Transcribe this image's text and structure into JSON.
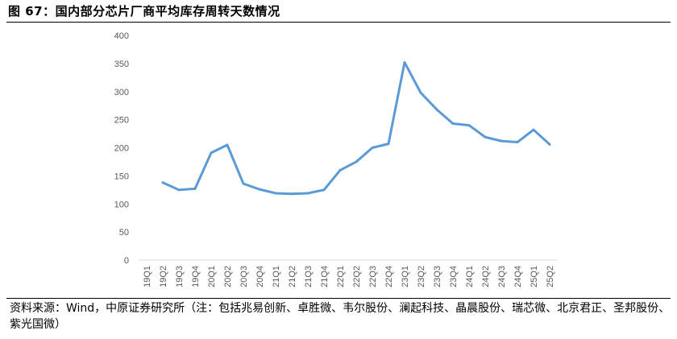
{
  "figure": {
    "title": "图 67：国内部分芯片厂商平均库存周转天数情况",
    "source": "资料来源：Wind，中原证券研究所（注：包括兆易创新、卓胜微、韦尔股份、澜起科技、晶晨股份、瑞芯微、北京君正、圣邦股份、紫光国微）"
  },
  "chart_data": {
    "type": "line",
    "title": "",
    "xlabel": "",
    "ylabel": "",
    "ylim": [
      0,
      400
    ],
    "yticks": [
      "0",
      "50",
      "100",
      "150",
      "200",
      "250",
      "300",
      "350",
      "400"
    ],
    "grid": false,
    "legend": "none",
    "categories": [
      "19Q1",
      "19Q2",
      "19Q3",
      "19Q4",
      "20Q1",
      "20Q2",
      "20Q3",
      "20Q4",
      "21Q1",
      "21Q2",
      "21Q3",
      "21Q4",
      "22Q1",
      "22Q2",
      "22Q3",
      "22Q4",
      "23Q1",
      "23Q2",
      "23Q3",
      "23Q4",
      "24Q1",
      "24Q2",
      "24Q3",
      "24Q4",
      "25Q1",
      "25Q2"
    ],
    "series": [
      {
        "color": "#5b9bd5",
        "values": [
          null,
          138,
          125,
          127,
          191,
          205,
          136,
          126,
          119,
          118,
          119,
          125,
          160,
          175,
          200,
          207,
          352,
          298,
          268,
          243,
          240,
          219,
          212,
          210,
          232,
          206
        ]
      }
    ]
  }
}
